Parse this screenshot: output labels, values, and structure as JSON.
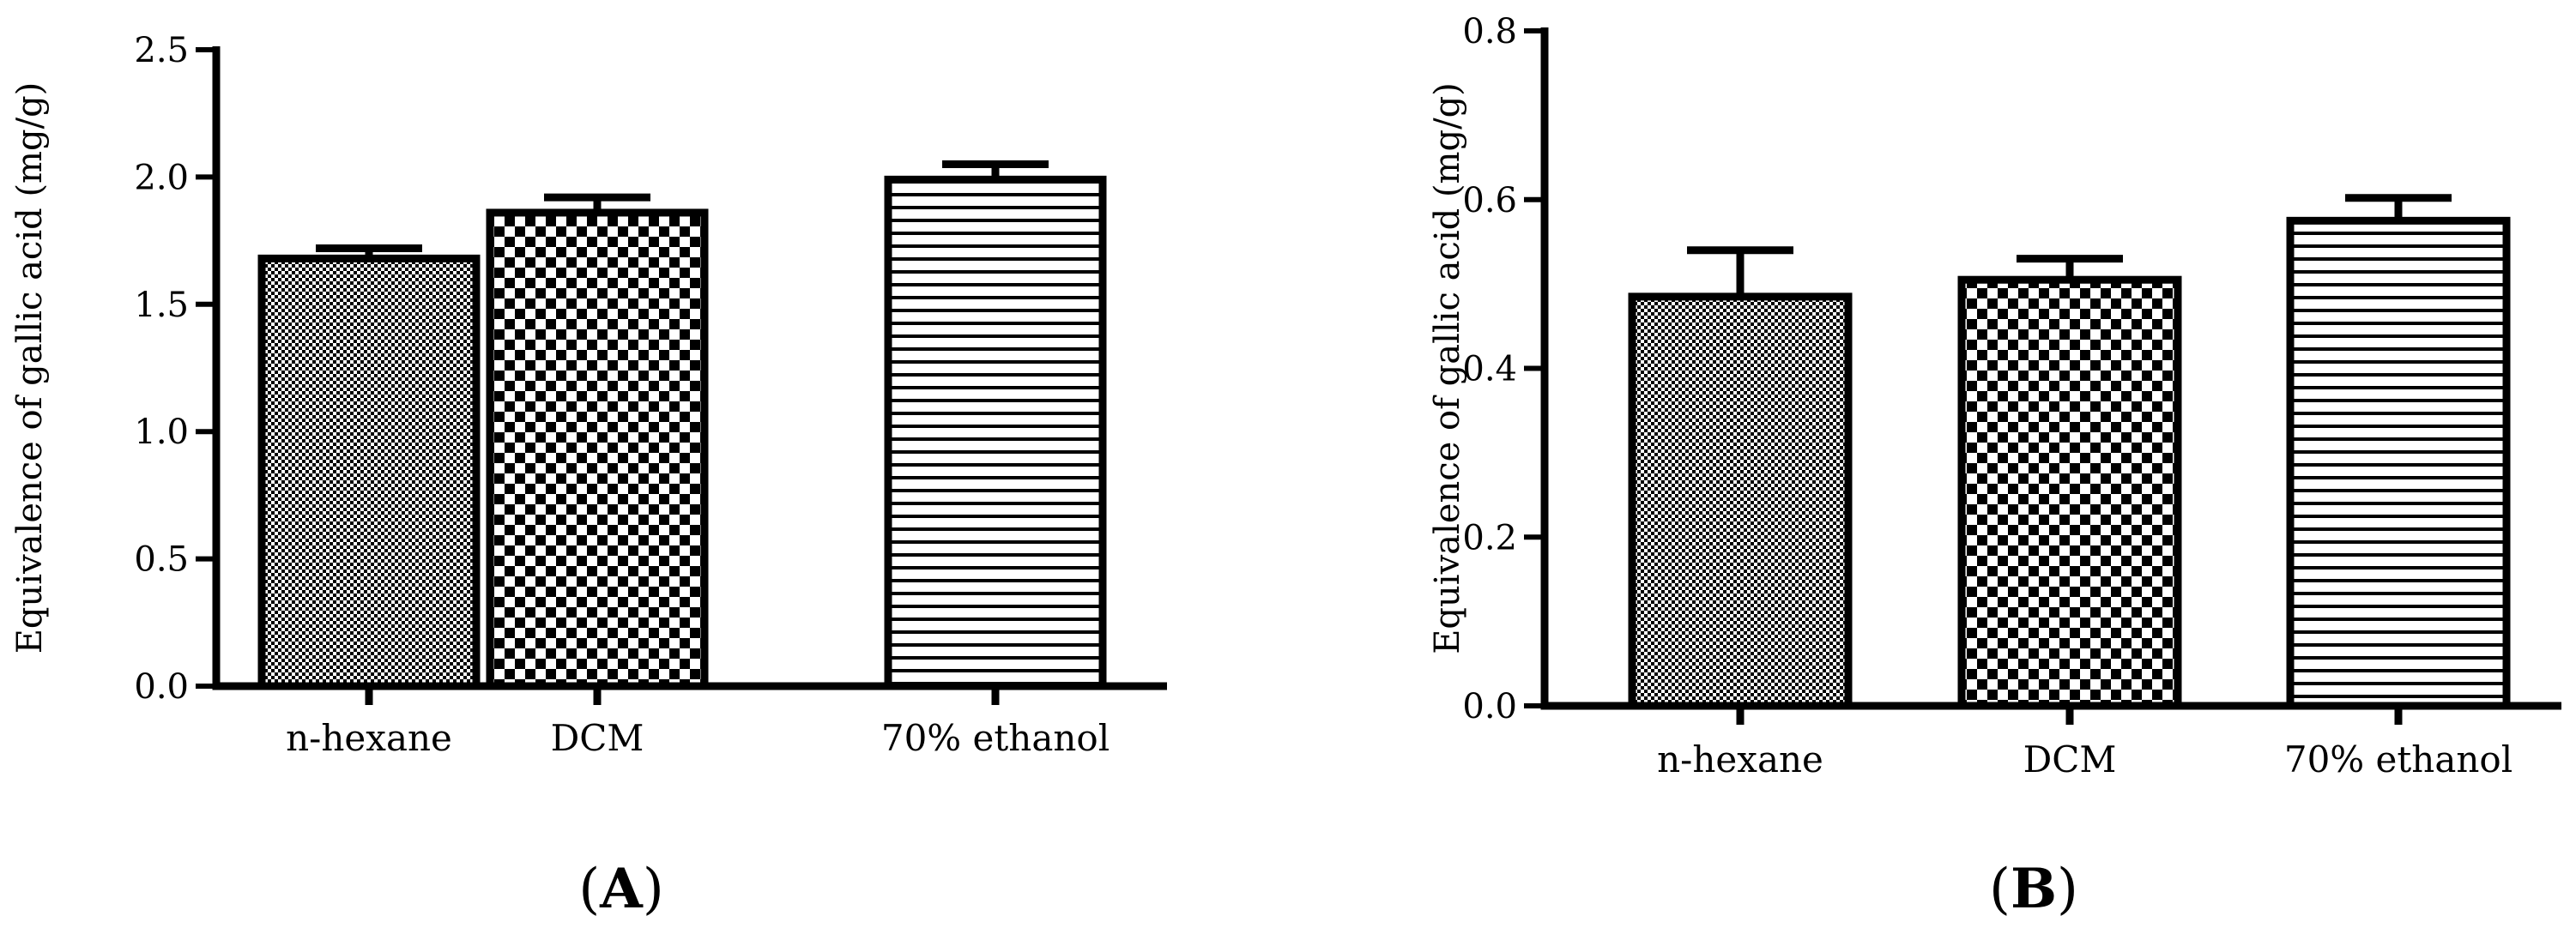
{
  "chart_data": [
    {
      "type": "bar",
      "panel_label": "A",
      "categories": [
        "n-hexane",
        "DCM",
        "70% ethanol"
      ],
      "values": [
        1.68,
        1.86,
        1.99
      ],
      "error": [
        0.04,
        0.06,
        0.06
      ],
      "patterns": [
        "fine-check",
        "checker",
        "hlines"
      ],
      "title": "",
      "xlabel": "",
      "ylabel": "Equivalence of gallic acid (mg/g)",
      "ylim": [
        0,
        2.5
      ],
      "yticks": [
        0.0,
        0.5,
        1.0,
        1.5,
        2.0,
        2.5
      ],
      "ytick_labels": [
        "0.0",
        "0.5",
        "1.0",
        "1.5",
        "2.0",
        "2.5"
      ],
      "grid": false,
      "legend": "none"
    },
    {
      "type": "bar",
      "panel_label": "B",
      "categories": [
        "n-hexane",
        "DCM",
        "70% ethanol"
      ],
      "values": [
        0.485,
        0.505,
        0.575
      ],
      "error": [
        0.055,
        0.025,
        0.027
      ],
      "patterns": [
        "fine-check",
        "checker",
        "hlines"
      ],
      "title": "",
      "xlabel": "",
      "ylabel": "Equivalence of gallic acid (mg/g)",
      "ylim": [
        0,
        0.8
      ],
      "yticks": [
        0.0,
        0.2,
        0.4,
        0.6,
        0.8
      ],
      "ytick_labels": [
        "0.0",
        "0.2",
        "0.4",
        "0.6",
        "0.8"
      ],
      "grid": false,
      "legend": "none"
    }
  ]
}
